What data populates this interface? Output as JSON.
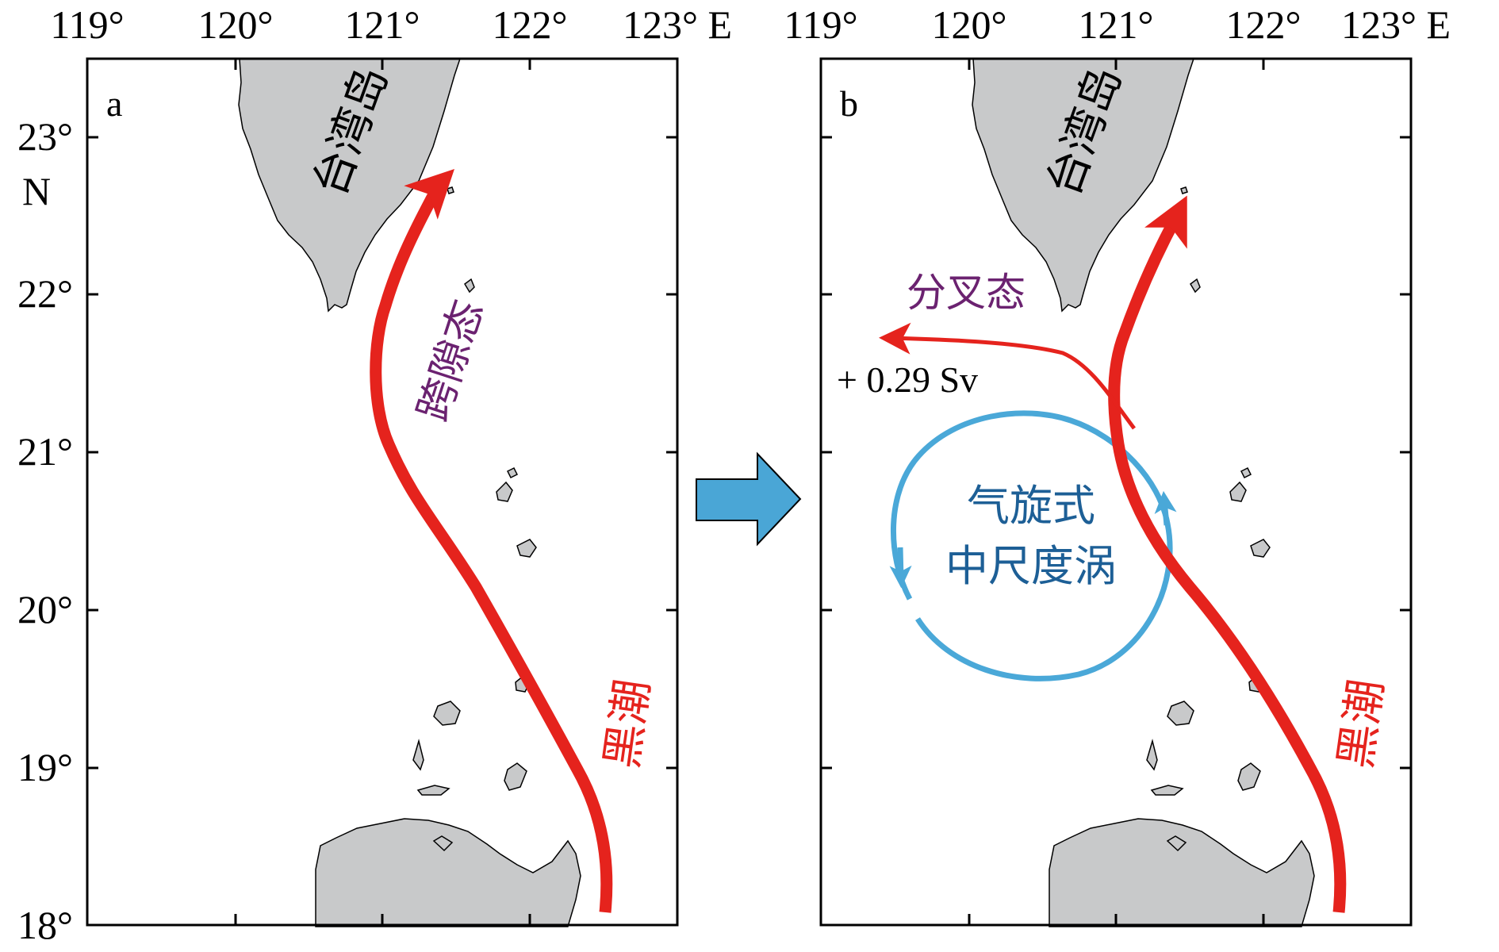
{
  "colors": {
    "land": "#c8c9ca",
    "kuroshio": "#e5231d",
    "eddy": "#4aa8d8",
    "eddy_text": "#1d5f96",
    "mode_text": "#6b2270",
    "transition_arrow": "#4aa6d6"
  },
  "axes": {
    "lon_ticks": [
      "119°",
      "120°",
      "121°",
      "122°",
      "123° E"
    ],
    "lat_ticks": [
      "23°",
      "22°",
      "21°",
      "20°",
      "19°",
      "18°"
    ],
    "lat_unit": "N"
  },
  "panel_a": {
    "letter": "a",
    "island_label": "台湾岛",
    "mode_label": "跨隙态",
    "current_label": "黑潮"
  },
  "panel_b": {
    "letter": "b",
    "island_label": "台湾岛",
    "mode_label": "分叉态",
    "flux_label": "+ 0.29 Sv",
    "eddy_label_line1": "气旋式",
    "eddy_label_line2": "中尺度涡",
    "current_label": "黑潮"
  },
  "transition": {
    "icon": "right-arrow-icon"
  }
}
